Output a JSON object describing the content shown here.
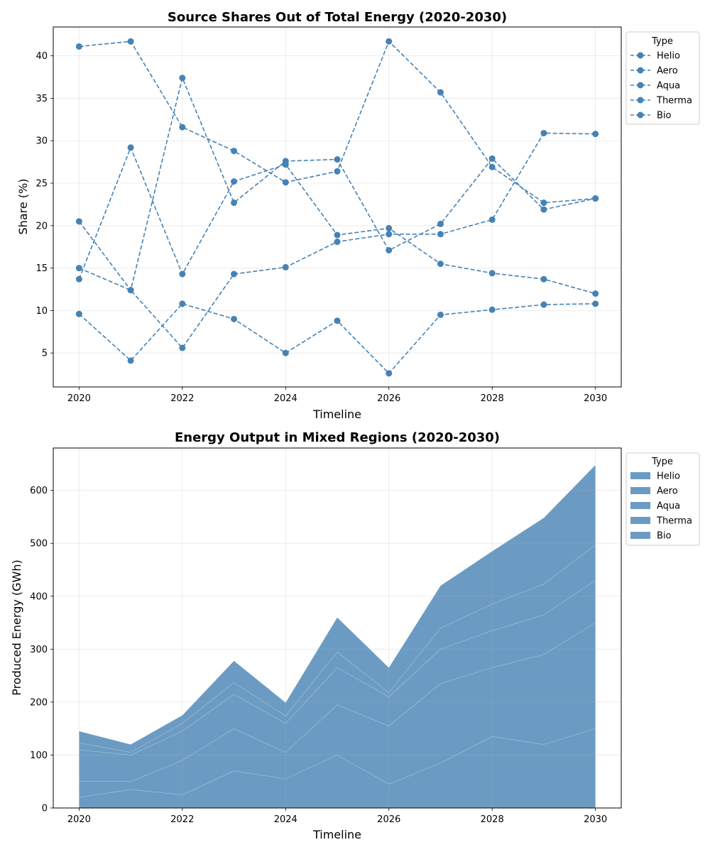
{
  "chart_data": [
    {
      "type": "line",
      "title": "Source Shares Out of Total Energy (2020-2030)",
      "xlabel": "Timeline",
      "ylabel": "Share (%)",
      "x": [
        2020,
        2021,
        2022,
        2023,
        2024,
        2025,
        2026,
        2027,
        2028,
        2029,
        2030
      ],
      "xticks": [
        2020,
        2022,
        2024,
        2026,
        2028,
        2030
      ],
      "yticks": [
        5,
        10,
        15,
        20,
        25,
        30,
        35,
        40
      ],
      "xlim": [
        2019.5,
        2030.5
      ],
      "ylim": [
        1.0,
        43.4
      ],
      "grid": true,
      "color": "#4682b4",
      "line_style": "dashed",
      "marker": "circle",
      "legend": {
        "title": "Type",
        "position": "outside-top-right"
      },
      "series": [
        {
          "name": "Helio",
          "values": [
            13.7,
            29.2,
            14.3,
            25.2,
            27.2,
            18.9,
            19.7,
            15.5,
            14.4,
            13.7,
            12.0
          ]
        },
        {
          "name": "Aero",
          "values": [
            41.1,
            41.7,
            31.6,
            28.8,
            25.1,
            26.4,
            41.7,
            35.7,
            26.9,
            22.7,
            23.2
          ]
        },
        {
          "name": "Aqua",
          "values": [
            20.5,
            12.4,
            37.4,
            22.7,
            27.6,
            27.8,
            17.1,
            20.2,
            27.9,
            21.9,
            23.2
          ]
        },
        {
          "name": "Therma",
          "values": [
            15.0,
            12.4,
            5.6,
            14.3,
            15.1,
            18.1,
            19.0,
            19.0,
            20.7,
            30.9,
            30.8
          ]
        },
        {
          "name": "Bio",
          "values": [
            9.6,
            4.1,
            10.8,
            9.0,
            5.0,
            8.8,
            2.6,
            9.5,
            10.1,
            10.7,
            10.8
          ]
        }
      ]
    },
    {
      "type": "area",
      "stacked": true,
      "title": "Energy Output in Mixed Regions (2020-2030)",
      "xlabel": "Timeline",
      "ylabel": "Produced Energy (GWh)",
      "x": [
        2020,
        2021,
        2022,
        2023,
        2024,
        2025,
        2026,
        2027,
        2028,
        2029,
        2030
      ],
      "xticks": [
        2020,
        2022,
        2024,
        2026,
        2028,
        2030
      ],
      "yticks": [
        0,
        100,
        200,
        300,
        400,
        500,
        600
      ],
      "xlim": [
        2019.5,
        2030.5
      ],
      "ylim": [
        0,
        680
      ],
      "grid": true,
      "color": "#4682b4",
      "fill_opacity": 0.8,
      "legend": {
        "title": "Type",
        "position": "outside-top-right"
      },
      "series": [
        {
          "name": "Helio",
          "values": [
            20,
            35,
            25,
            70,
            55,
            100,
            45,
            85,
            135,
            120,
            150
          ]
        },
        {
          "name": "Aero",
          "values": [
            30,
            15,
            65,
            80,
            50,
            95,
            110,
            150,
            130,
            170,
            200
          ]
        },
        {
          "name": "Aqua",
          "values": [
            60,
            50,
            55,
            65,
            55,
            70,
            55,
            65,
            70,
            75,
            80
          ]
        },
        {
          "name": "Therma",
          "values": [
            13,
            5,
            15,
            22,
            14,
            30,
            8,
            40,
            50,
            58,
            67
          ]
        },
        {
          "name": "Bio",
          "values": [
            22,
            15,
            15,
            41,
            25,
            65,
            47,
            80,
            100,
            125,
            151
          ]
        }
      ]
    }
  ]
}
